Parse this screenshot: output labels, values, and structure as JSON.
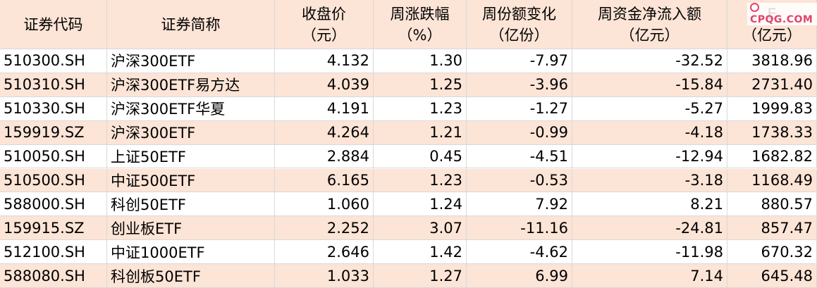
{
  "table": {
    "header": [
      [
        "证券代码"
      ],
      [
        "证券简称"
      ],
      [
        "收盘价",
        "（元）"
      ],
      [
        "周涨跌幅",
        "（%）"
      ],
      [
        "周份额变化",
        "（亿份）"
      ],
      [
        "周资金净流入额",
        "（亿元）"
      ],
      [
        "E",
        "（亿元）"
      ]
    ],
    "rows": [
      [
        "510300.SH",
        "沪深300ETF",
        "4.132",
        "1.30",
        "-7.97",
        "-32.52",
        "3818.96"
      ],
      [
        "510310.SH",
        "沪深300ETF易方达",
        "4.039",
        "1.25",
        "-3.96",
        "-15.84",
        "2731.40"
      ],
      [
        "510330.SH",
        "沪深300ETF华夏",
        "4.191",
        "1.23",
        "-1.27",
        "-5.27",
        "1999.83"
      ],
      [
        "159919.SZ",
        "沪深300ETF",
        "4.264",
        "1.21",
        "-0.99",
        "-4.18",
        "1738.33"
      ],
      [
        "510050.SH",
        "上证50ETF",
        "2.884",
        "0.45",
        "-4.51",
        "-12.94",
        "1682.82"
      ],
      [
        "510500.SH",
        "中证500ETF",
        "6.165",
        "1.23",
        "-0.53",
        "-3.18",
        "1168.49"
      ],
      [
        "588000.SH",
        "科创50ETF",
        "1.060",
        "1.24",
        "7.92",
        "8.21",
        "880.57"
      ],
      [
        "159915.SZ",
        "创业板ETF",
        "2.252",
        "3.07",
        "-11.16",
        "-24.81",
        "857.47"
      ],
      [
        "512100.SH",
        "中证1000ETF",
        "2.646",
        "1.42",
        "-4.62",
        "-11.98",
        "670.32"
      ],
      [
        "588080.SH",
        "科创板50ETF",
        "1.033",
        "1.27",
        "6.99",
        "7.14",
        "645.48"
      ]
    ]
  },
  "watermark": "CPQG.COM"
}
